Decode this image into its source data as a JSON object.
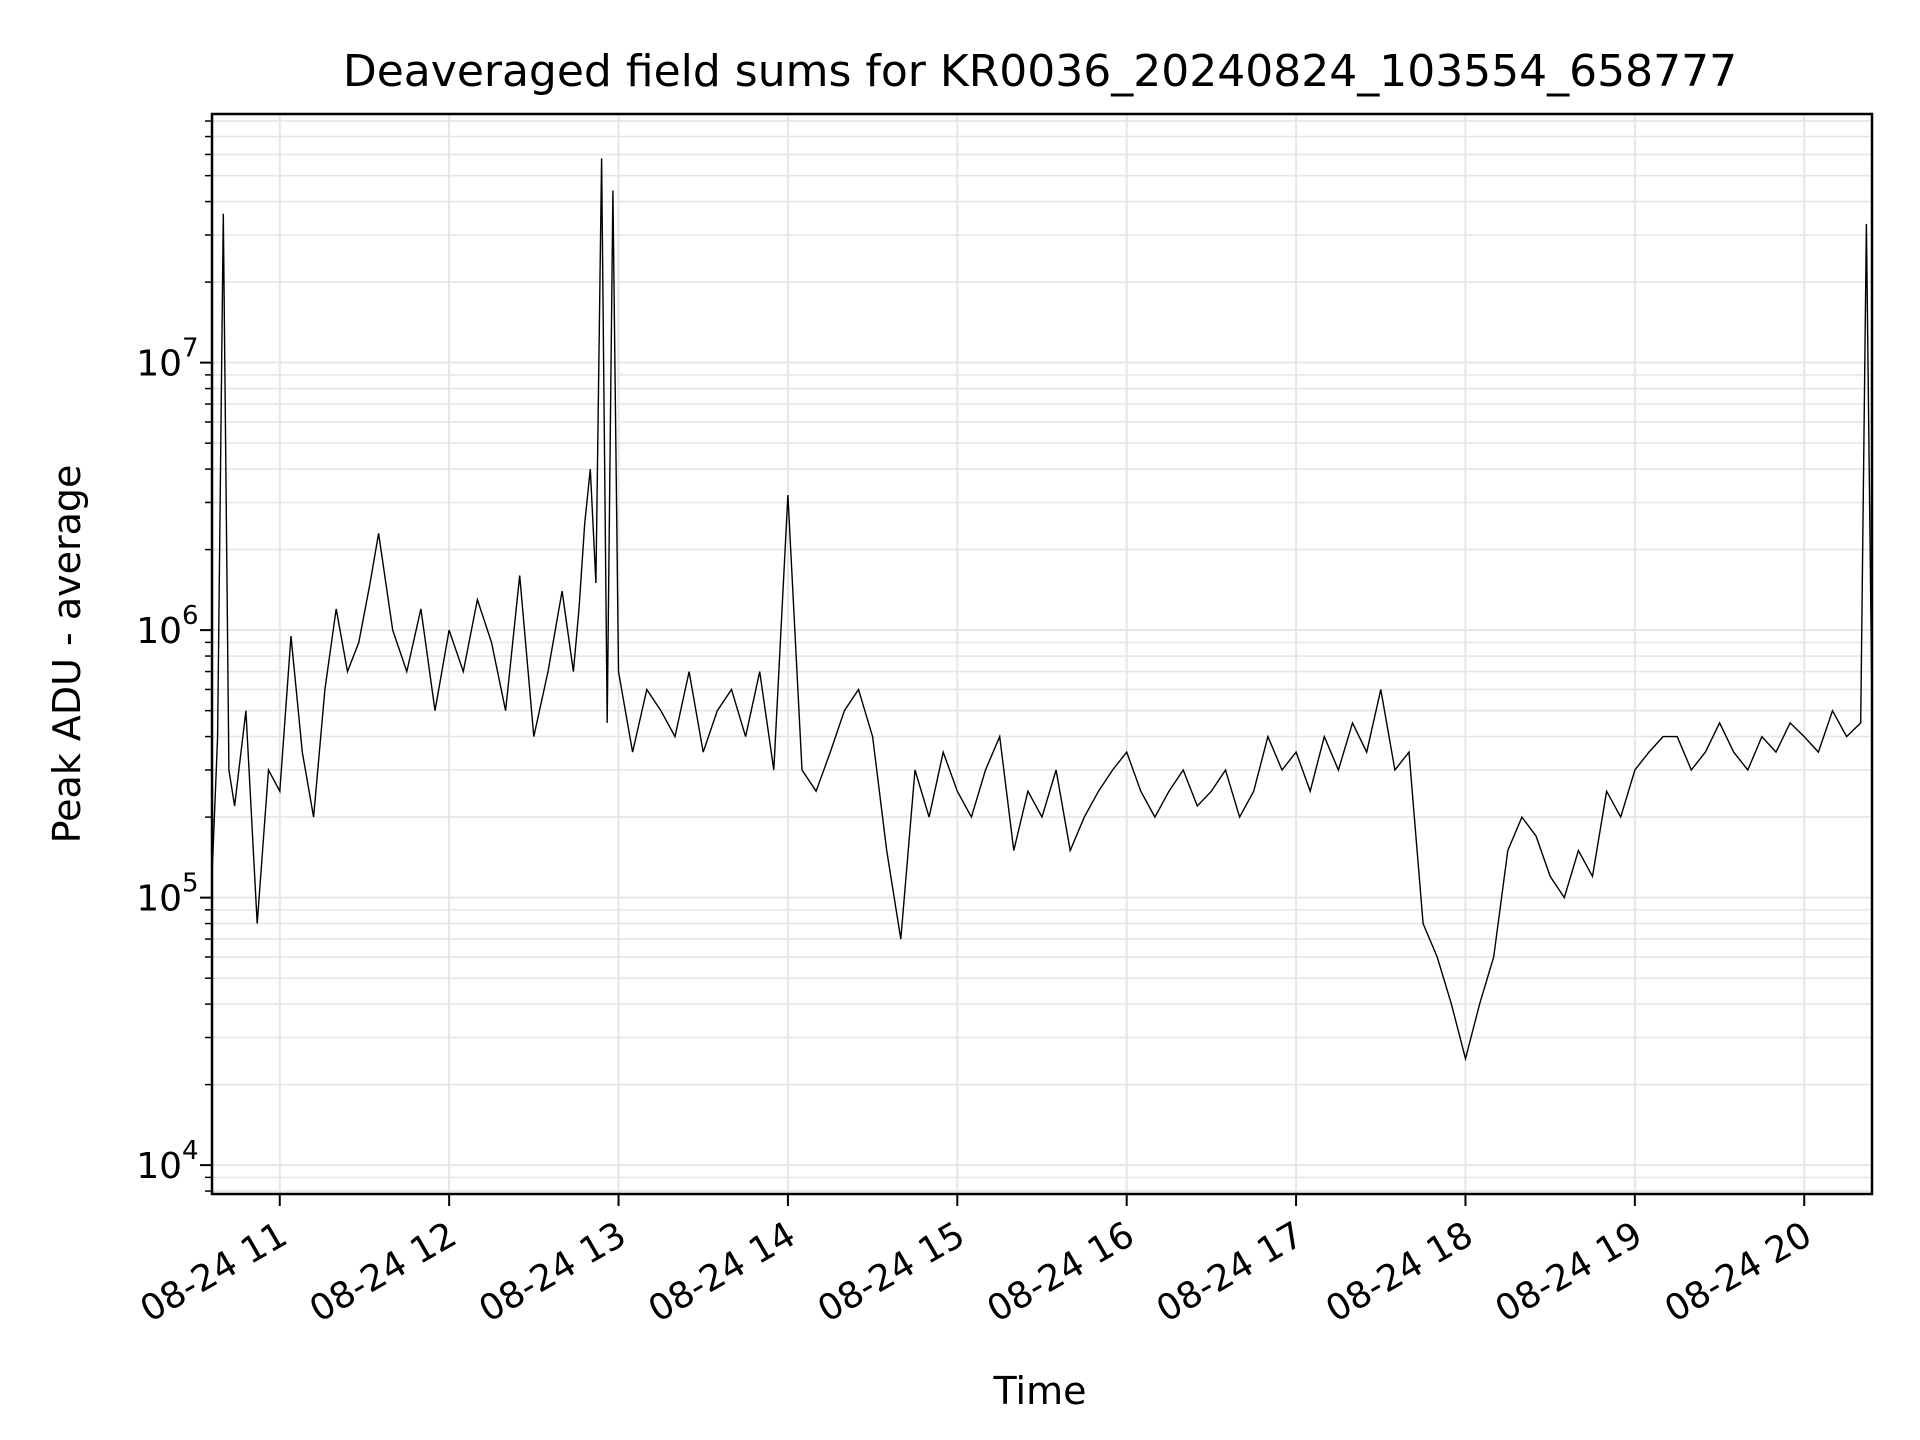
{
  "chart_data": {
    "type": "line",
    "title": "Deaveraged field sums for KR0036_20240824_103554_658777",
    "xlabel": "Time",
    "ylabel": "Peak ADU - average",
    "yscale": "log",
    "ylim": [
      7800,
      85000000
    ],
    "xlim": [
      "2024-08-24 10:36",
      "2024-08-24 20:24"
    ],
    "grid": true,
    "line_color": "#000000",
    "grid_color": "#e6e6e6",
    "x_ticks": [
      {
        "label": "08-24 11",
        "x": "2024-08-24 11:00"
      },
      {
        "label": "08-24 12",
        "x": "2024-08-24 12:00"
      },
      {
        "label": "08-24 13",
        "x": "2024-08-24 13:00"
      },
      {
        "label": "08-24 14",
        "x": "2024-08-24 14:00"
      },
      {
        "label": "08-24 15",
        "x": "2024-08-24 15:00"
      },
      {
        "label": "08-24 16",
        "x": "2024-08-24 16:00"
      },
      {
        "label": "08-24 17",
        "x": "2024-08-24 17:00"
      },
      {
        "label": "08-24 18",
        "x": "2024-08-24 18:00"
      },
      {
        "label": "08-24 19",
        "x": "2024-08-24 19:00"
      },
      {
        "label": "08-24 20",
        "x": "2024-08-24 20:00"
      }
    ],
    "y_ticks": [
      {
        "base": "10",
        "exp": "4",
        "value": 10000
      },
      {
        "base": "10",
        "exp": "5",
        "value": 100000
      },
      {
        "base": "10",
        "exp": "6",
        "value": 1000000
      },
      {
        "base": "10",
        "exp": "7",
        "value": 10000000
      }
    ],
    "series": [
      {
        "x": [
          "2024-08-24 10:36",
          "2024-08-24 10:38",
          "2024-08-24 10:40",
          "2024-08-24 10:42",
          "2024-08-24 10:44",
          "2024-08-24 10:48",
          "2024-08-24 10:52",
          "2024-08-24 10:56",
          "2024-08-24 11:00",
          "2024-08-24 11:04",
          "2024-08-24 11:08",
          "2024-08-24 11:12",
          "2024-08-24 11:16",
          "2024-08-24 11:20",
          "2024-08-24 11:24",
          "2024-08-24 11:28",
          "2024-08-24 11:32",
          "2024-08-24 11:35",
          "2024-08-24 11:40",
          "2024-08-24 11:45",
          "2024-08-24 11:50",
          "2024-08-24 11:55",
          "2024-08-24 12:00",
          "2024-08-24 12:05",
          "2024-08-24 12:10",
          "2024-08-24 12:15",
          "2024-08-24 12:20",
          "2024-08-24 12:25",
          "2024-08-24 12:30",
          "2024-08-24 12:35",
          "2024-08-24 12:40",
          "2024-08-24 12:44",
          "2024-08-24 12:46",
          "2024-08-24 12:48",
          "2024-08-24 12:50",
          "2024-08-24 12:52",
          "2024-08-24 12:54",
          "2024-08-24 12:56",
          "2024-08-24 12:58",
          "2024-08-24 13:00",
          "2024-08-24 13:05",
          "2024-08-24 13:10",
          "2024-08-24 13:15",
          "2024-08-24 13:20",
          "2024-08-24 13:25",
          "2024-08-24 13:30",
          "2024-08-24 13:35",
          "2024-08-24 13:40",
          "2024-08-24 13:45",
          "2024-08-24 13:50",
          "2024-08-24 13:55",
          "2024-08-24 14:00",
          "2024-08-24 14:05",
          "2024-08-24 14:10",
          "2024-08-24 14:15",
          "2024-08-24 14:20",
          "2024-08-24 14:25",
          "2024-08-24 14:30",
          "2024-08-24 14:35",
          "2024-08-24 14:40",
          "2024-08-24 14:45",
          "2024-08-24 14:50",
          "2024-08-24 14:55",
          "2024-08-24 15:00",
          "2024-08-24 15:05",
          "2024-08-24 15:10",
          "2024-08-24 15:15",
          "2024-08-24 15:20",
          "2024-08-24 15:25",
          "2024-08-24 15:30",
          "2024-08-24 15:35",
          "2024-08-24 15:40",
          "2024-08-24 15:45",
          "2024-08-24 15:50",
          "2024-08-24 15:55",
          "2024-08-24 16:00",
          "2024-08-24 16:05",
          "2024-08-24 16:10",
          "2024-08-24 16:15",
          "2024-08-24 16:20",
          "2024-08-24 16:25",
          "2024-08-24 16:30",
          "2024-08-24 16:35",
          "2024-08-24 16:40",
          "2024-08-24 16:45",
          "2024-08-24 16:50",
          "2024-08-24 16:55",
          "2024-08-24 17:00",
          "2024-08-24 17:05",
          "2024-08-24 17:10",
          "2024-08-24 17:15",
          "2024-08-24 17:20",
          "2024-08-24 17:25",
          "2024-08-24 17:30",
          "2024-08-24 17:35",
          "2024-08-24 17:40",
          "2024-08-24 17:45",
          "2024-08-24 17:50",
          "2024-08-24 17:55",
          "2024-08-24 18:00",
          "2024-08-24 18:05",
          "2024-08-24 18:10",
          "2024-08-24 18:15",
          "2024-08-24 18:20",
          "2024-08-24 18:25",
          "2024-08-24 18:30",
          "2024-08-24 18:35",
          "2024-08-24 18:40",
          "2024-08-24 18:45",
          "2024-08-24 18:50",
          "2024-08-24 18:55",
          "2024-08-24 19:00",
          "2024-08-24 19:05",
          "2024-08-24 19:10",
          "2024-08-24 19:15",
          "2024-08-24 19:20",
          "2024-08-24 19:25",
          "2024-08-24 19:30",
          "2024-08-24 19:35",
          "2024-08-24 19:40",
          "2024-08-24 19:45",
          "2024-08-24 19:50",
          "2024-08-24 19:55",
          "2024-08-24 20:00",
          "2024-08-24 20:05",
          "2024-08-24 20:10",
          "2024-08-24 20:15",
          "2024-08-24 20:20",
          "2024-08-24 20:22",
          "2024-08-24 20:24"
        ],
        "values": [
          120000,
          400000,
          36000000,
          300000,
          220000,
          500000,
          80000,
          300000,
          250000,
          950000,
          350000,
          200000,
          600000,
          1200000,
          700000,
          900000,
          1500000,
          2300000,
          1000000,
          700000,
          1200000,
          500000,
          1000000,
          700000,
          1300000,
          900000,
          500000,
          1600000,
          400000,
          700000,
          1400000,
          700000,
          1200000,
          2500000,
          4000000,
          1500000,
          58000000,
          450000,
          44000000,
          700000,
          350000,
          600000,
          500000,
          400000,
          700000,
          350000,
          500000,
          600000,
          400000,
          700000,
          300000,
          3200000,
          300000,
          250000,
          350000,
          500000,
          600000,
          400000,
          150000,
          70000,
          300000,
          200000,
          350000,
          250000,
          200000,
          300000,
          400000,
          150000,
          250000,
          200000,
          300000,
          150000,
          200000,
          250000,
          300000,
          350000,
          250000,
          200000,
          250000,
          300000,
          220000,
          250000,
          300000,
          200000,
          250000,
          400000,
          300000,
          350000,
          250000,
          400000,
          300000,
          450000,
          350000,
          600000,
          300000,
          350000,
          80000,
          60000,
          40000,
          25000,
          40000,
          60000,
          150000,
          200000,
          170000,
          120000,
          100000,
          150000,
          120000,
          250000,
          200000,
          300000,
          350000,
          400000,
          400000,
          300000,
          350000,
          450000,
          350000,
          300000,
          400000,
          350000,
          450000,
          400000,
          350000,
          500000,
          400000,
          450000,
          33000000,
          500000
        ]
      }
    ]
  }
}
